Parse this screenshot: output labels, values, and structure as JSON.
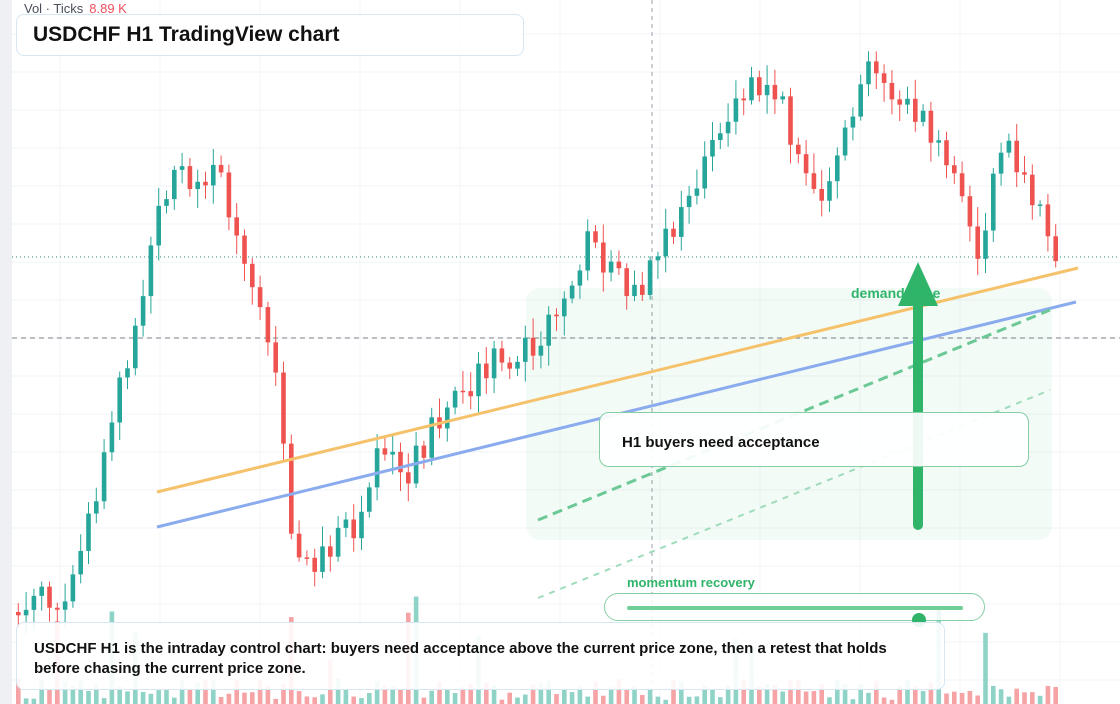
{
  "header": {
    "title": "USDCHF H1 TradingView chart"
  },
  "volume_legend": {
    "label": "Vol · Ticks",
    "value": "8.89 K"
  },
  "annotations": {
    "zone_callout": "H1 buyers need acceptance",
    "demand_label": "demand zone",
    "momentum_label": "momentum recovery",
    "momentum_level": 0.87
  },
  "description": "USDCHF H1 is the intraday control chart: buyers need acceptance above the current price zone, then a retest that holds before chasing the current price zone.",
  "colors": {
    "up": "#26a69a",
    "down": "#ef5350",
    "up_volume": "#8fd3c7",
    "down_volume": "#f6a3a6",
    "accent_green": "#2fb46a",
    "trend_orange": "#f5c26b",
    "trend_blue": "#8aabee"
  },
  "chart_data": {
    "type": "candlestick",
    "symbol": "USDCHF",
    "timeframe": "H1",
    "seed": 7,
    "bars": 134,
    "series": [
      {
        "name": "Vol · Ticks",
        "last_value": "8.89 K"
      }
    ]
  }
}
